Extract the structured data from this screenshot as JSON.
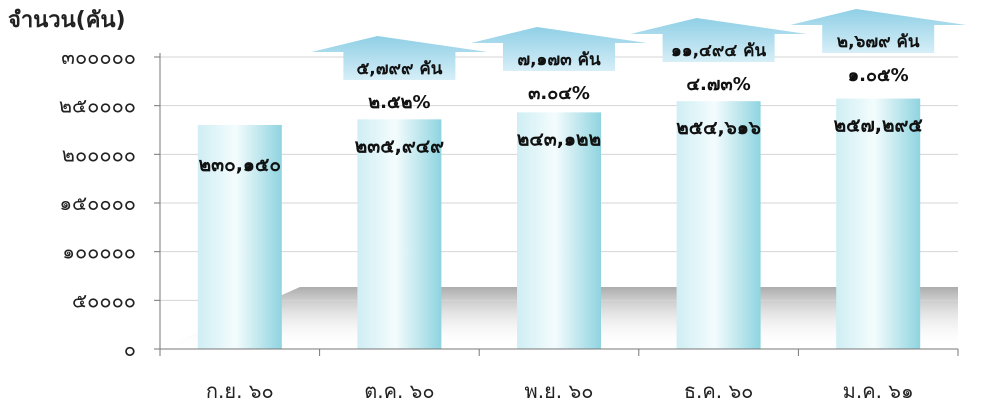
{
  "chart_data": {
    "type": "bar",
    "ylabel": "จำนวน(คัน)",
    "title": "",
    "ylim": [
      0,
      300000
    ],
    "yticks": [
      "๐",
      "๕๐๐๐๐",
      "๑๐๐๐๐๐",
      "๑๕๐๐๐๐",
      "๒๐๐๐๐๐",
      "๒๕๐๐๐๐",
      "๓๐๐๐๐๐"
    ],
    "categories": [
      "ก.ย. ๖๐",
      "ต.ค. ๖๐",
      "พ.ย. ๖๐",
      "ธ.ค. ๖๐",
      "ม.ค. ๖๑"
    ],
    "values": [
      230150,
      235949,
      243122,
      254616,
      257295
    ],
    "value_labels": [
      "๒๓๐,๑๕๐",
      "๒๓๕,๙๔๙",
      "๒๔๓,๑๒๒",
      "๒๕๔,๖๑๖",
      "๒๕๗,๒๙๕"
    ],
    "increase_labels": [
      "",
      "๕,๗๙๙ คัน",
      "๗,๑๗๓ คัน",
      "๑๑,๔๙๔ คัน",
      "๒,๖๗๙ คัน"
    ],
    "percent_labels": [
      "",
      "๒.๕๒%",
      "๓.๐๔%",
      "๔.๗๓%",
      "๑.๐๕%"
    ],
    "grid": true,
    "colors": {
      "bar_light": "#eefafc",
      "bar_dark": "#8fd4e0",
      "arrow": "#a7d7ea",
      "grid": "#d4d4d4",
      "floor": "#b8b8b8"
    }
  }
}
